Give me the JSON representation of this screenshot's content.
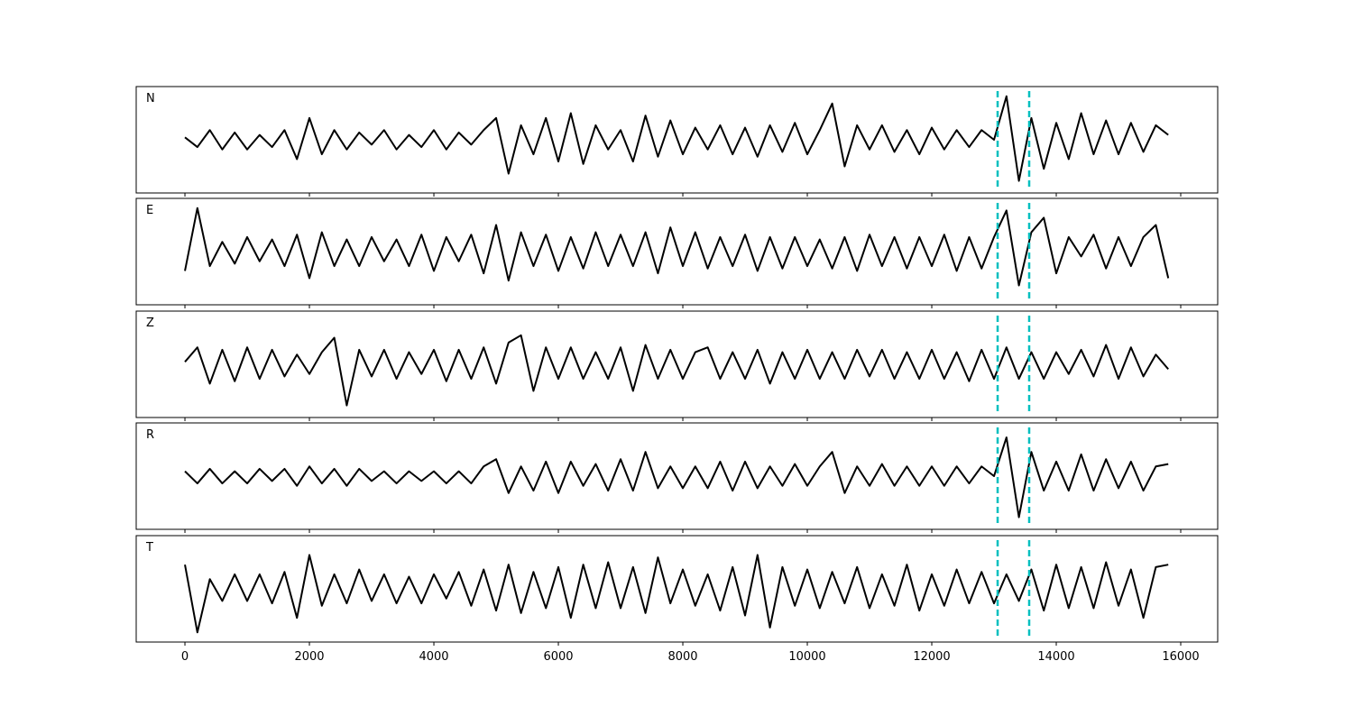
{
  "chart_data": {
    "type": "line",
    "x": [
      0,
      200,
      400,
      600,
      800,
      1000,
      1200,
      1400,
      1600,
      1800,
      2000,
      2200,
      2400,
      2600,
      2800,
      3000,
      3200,
      3400,
      3600,
      3800,
      4000,
      4200,
      4400,
      4600,
      4800,
      5000,
      5200,
      5400,
      5600,
      5800,
      6000,
      6200,
      6400,
      6600,
      6800,
      7000,
      7200,
      7400,
      7600,
      7800,
      8000,
      8200,
      8400,
      8600,
      8800,
      9000,
      9200,
      9400,
      9600,
      9800,
      10000,
      10200,
      10400,
      10600,
      10800,
      11000,
      11200,
      11400,
      11600,
      11800,
      12000,
      12200,
      12400,
      12600,
      12800,
      13000,
      13200,
      13400,
      13600,
      13800,
      14000,
      14200,
      14400,
      14600,
      14800,
      15000,
      15200,
      15400,
      15600,
      15800
    ],
    "series": [
      {
        "name": "N",
        "color": "#000000",
        "values": [
          0.05,
          -0.15,
          0.2,
          -0.2,
          0.15,
          -0.2,
          0.1,
          -0.15,
          0.2,
          -0.4,
          0.45,
          -0.3,
          0.2,
          -0.2,
          0.15,
          -0.1,
          0.2,
          -0.2,
          0.1,
          -0.15,
          0.2,
          -0.2,
          0.15,
          -0.1,
          0.2,
          0.45,
          -0.7,
          0.3,
          -0.3,
          0.45,
          -0.45,
          0.55,
          -0.5,
          0.3,
          -0.2,
          0.2,
          -0.45,
          0.5,
          -0.35,
          0.4,
          -0.3,
          0.25,
          -0.2,
          0.3,
          -0.3,
          0.25,
          -0.35,
          0.3,
          -0.25,
          0.35,
          -0.3,
          0.2,
          0.75,
          -0.55,
          0.3,
          -0.2,
          0.3,
          -0.25,
          0.2,
          -0.3,
          0.25,
          -0.2,
          0.2,
          -0.15,
          0.2,
          0.0,
          0.9,
          -0.85,
          0.45,
          -0.6,
          0.35,
          -0.4,
          0.55,
          -0.3,
          0.4,
          -0.3,
          0.35,
          -0.25,
          0.3,
          0.1
        ]
      },
      {
        "name": "E",
        "color": "#000000",
        "values": [
          -0.4,
          0.9,
          -0.3,
          0.2,
          -0.25,
          0.3,
          -0.2,
          0.25,
          -0.3,
          0.35,
          -0.55,
          0.4,
          -0.3,
          0.25,
          -0.3,
          0.3,
          -0.2,
          0.25,
          -0.3,
          0.35,
          -0.4,
          0.3,
          -0.2,
          0.35,
          -0.45,
          0.55,
          -0.6,
          0.4,
          -0.3,
          0.35,
          -0.4,
          0.3,
          -0.35,
          0.4,
          -0.3,
          0.35,
          -0.3,
          0.4,
          -0.45,
          0.5,
          -0.3,
          0.4,
          -0.35,
          0.3,
          -0.3,
          0.35,
          -0.4,
          0.3,
          -0.35,
          0.3,
          -0.3,
          0.25,
          -0.35,
          0.3,
          -0.4,
          0.35,
          -0.3,
          0.3,
          -0.35,
          0.3,
          -0.3,
          0.35,
          -0.4,
          0.3,
          -0.35,
          0.3,
          0.85,
          -0.7,
          0.4,
          0.7,
          -0.45,
          0.3,
          -0.1,
          0.35,
          -0.35,
          0.3,
          -0.3,
          0.3,
          0.55,
          -0.55
        ]
      },
      {
        "name": "Z",
        "color": "#000000",
        "values": [
          0.05,
          0.35,
          -0.4,
          0.3,
          -0.35,
          0.35,
          -0.3,
          0.3,
          -0.25,
          0.2,
          -0.2,
          0.25,
          0.55,
          -0.85,
          0.3,
          -0.25,
          0.3,
          -0.3,
          0.25,
          -0.2,
          0.3,
          -0.35,
          0.3,
          -0.3,
          0.35,
          -0.4,
          0.45,
          0.6,
          -0.55,
          0.35,
          -0.3,
          0.35,
          -0.3,
          0.25,
          -0.3,
          0.35,
          -0.55,
          0.4,
          -0.3,
          0.3,
          -0.3,
          0.25,
          0.35,
          -0.3,
          0.25,
          -0.3,
          0.3,
          -0.4,
          0.25,
          -0.3,
          0.3,
          -0.3,
          0.25,
          -0.3,
          0.3,
          -0.25,
          0.3,
          -0.3,
          0.25,
          -0.3,
          0.3,
          -0.3,
          0.25,
          -0.35,
          0.3,
          -0.3,
          0.35,
          -0.3,
          0.25,
          -0.3,
          0.25,
          -0.2,
          0.3,
          -0.25,
          0.4,
          -0.3,
          0.35,
          -0.25,
          0.2,
          -0.1
        ]
      },
      {
        "name": "R",
        "color": "#000000",
        "values": [
          0.1,
          -0.15,
          0.15,
          -0.15,
          0.1,
          -0.15,
          0.15,
          -0.1,
          0.15,
          -0.2,
          0.2,
          -0.15,
          0.15,
          -0.2,
          0.15,
          -0.1,
          0.1,
          -0.15,
          0.1,
          -0.1,
          0.1,
          -0.15,
          0.1,
          -0.15,
          0.2,
          0.35,
          -0.35,
          0.2,
          -0.3,
          0.3,
          -0.35,
          0.3,
          -0.2,
          0.25,
          -0.3,
          0.35,
          -0.3,
          0.5,
          -0.25,
          0.2,
          -0.25,
          0.2,
          -0.25,
          0.3,
          -0.3,
          0.3,
          -0.25,
          0.2,
          -0.2,
          0.25,
          -0.2,
          0.2,
          0.5,
          -0.35,
          0.2,
          -0.2,
          0.25,
          -0.2,
          0.2,
          -0.2,
          0.2,
          -0.2,
          0.2,
          -0.15,
          0.2,
          0.0,
          0.8,
          -0.85,
          0.5,
          -0.3,
          0.3,
          -0.3,
          0.45,
          -0.3,
          0.35,
          -0.25,
          0.3,
          -0.3,
          0.2,
          0.25
        ]
      },
      {
        "name": "T",
        "color": "#000000",
        "values": [
          0.5,
          -0.9,
          0.2,
          -0.25,
          0.3,
          -0.25,
          0.3,
          -0.3,
          0.35,
          -0.6,
          0.7,
          -0.35,
          0.3,
          -0.3,
          0.4,
          -0.25,
          0.3,
          -0.3,
          0.25,
          -0.3,
          0.3,
          -0.2,
          0.35,
          -0.35,
          0.4,
          -0.45,
          0.5,
          -0.5,
          0.35,
          -0.4,
          0.45,
          -0.6,
          0.5,
          -0.4,
          0.55,
          -0.4,
          0.45,
          -0.5,
          0.65,
          -0.3,
          0.4,
          -0.35,
          0.3,
          -0.45,
          0.45,
          -0.55,
          0.7,
          -0.8,
          0.45,
          -0.35,
          0.4,
          -0.4,
          0.35,
          -0.3,
          0.45,
          -0.4,
          0.3,
          -0.35,
          0.5,
          -0.45,
          0.3,
          -0.35,
          0.4,
          -0.3,
          0.35,
          -0.3,
          0.3,
          -0.25,
          0.4,
          -0.45,
          0.5,
          -0.4,
          0.45,
          -0.4,
          0.55,
          -0.35,
          0.4,
          -0.6,
          0.45,
          0.5
        ]
      }
    ],
    "xlim": [
      -783,
      16594
    ],
    "xticks": [
      0,
      2000,
      4000,
      6000,
      8000,
      10000,
      12000,
      14000,
      16000
    ],
    "ylim": [
      -1.1,
      1.1
    ],
    "markers": [
      13058,
      13565
    ],
    "marker_color": "#00bfbf"
  }
}
